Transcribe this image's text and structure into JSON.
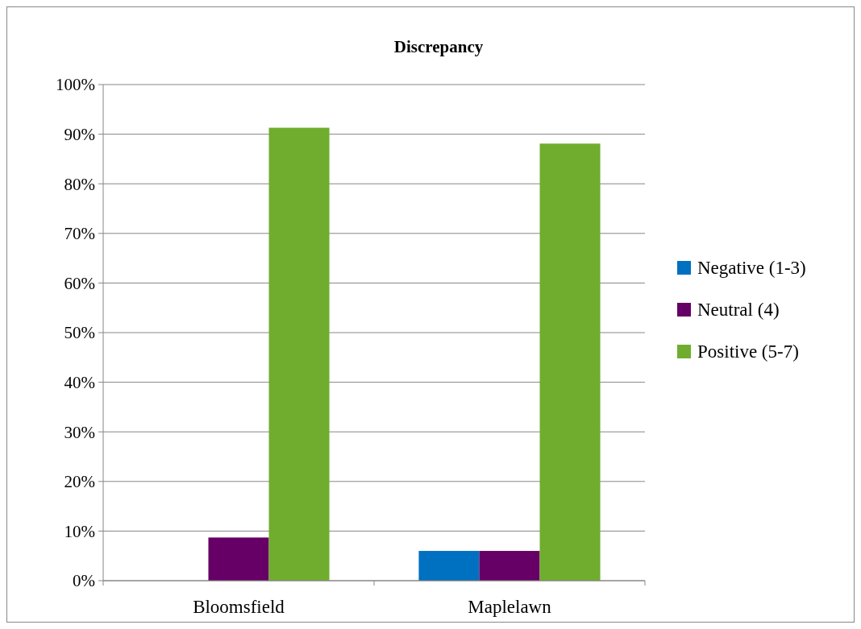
{
  "chart_data": {
    "type": "bar",
    "title": "Discrepancy",
    "categories": [
      "Bloomsfield",
      "Maplelawn"
    ],
    "series": [
      {
        "name": "Negative (1-3)",
        "color": "#0070c0",
        "values": [
          0,
          6
        ]
      },
      {
        "name": "Neutral (4)",
        "color": "#660066",
        "values": [
          8.7,
          6
        ]
      },
      {
        "name": "Positive (5-7)",
        "color": "#70ad2f",
        "values": [
          91.3,
          88.1
        ]
      }
    ],
    "ylim": [
      0,
      100
    ],
    "yticks": [
      {
        "value": 0,
        "label": "0%"
      },
      {
        "value": 10,
        "label": "10%"
      },
      {
        "value": 20,
        "label": "20%"
      },
      {
        "value": 30,
        "label": "30%"
      },
      {
        "value": 40,
        "label": "40%"
      },
      {
        "value": 50,
        "label": "50%"
      },
      {
        "value": 60,
        "label": "60%"
      },
      {
        "value": 70,
        "label": "70%"
      },
      {
        "value": 80,
        "label": "80%"
      },
      {
        "value": 90,
        "label": "90%"
      },
      {
        "value": 100,
        "label": "100%"
      }
    ],
    "grid": "y",
    "legend": "right"
  }
}
